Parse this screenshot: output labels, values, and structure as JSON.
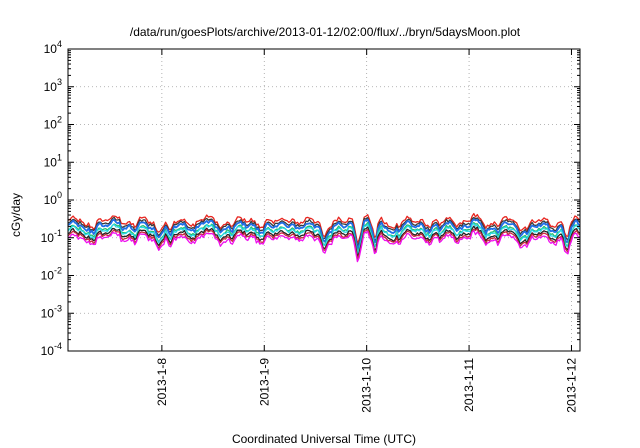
{
  "chart_data": {
    "type": "line",
    "title": "/data/run/goesPlots/archive/2013-01-12/02:00/flux/../bryn/5daysMoon.plot",
    "xlabel": "Coordinated Universal Time (UTC)",
    "ylabel": "cGy/day",
    "yscale": "log",
    "ylim": [
      0.0001,
      10000
    ],
    "xlim": [
      "2013-01-07 02:00",
      "2013-01-12 02:00"
    ],
    "grid": true,
    "x_ticks": [
      {
        "value": "2013-01-08 00:00",
        "label": "2013-1-8"
      },
      {
        "value": "2013-01-09 00:00",
        "label": "2013-1-9"
      },
      {
        "value": "2013-01-10 00:00",
        "label": "2013-1-10"
      },
      {
        "value": "2013-01-11 00:00",
        "label": "2013-1-11"
      },
      {
        "value": "2013-01-12 00:00",
        "label": "2013-1-12"
      }
    ],
    "y_ticks": [
      {
        "value": 0.0001,
        "base": "10",
        "exp": "-4"
      },
      {
        "value": 0.001,
        "base": "10",
        "exp": "-3"
      },
      {
        "value": 0.01,
        "base": "10",
        "exp": "-2"
      },
      {
        "value": 0.1,
        "base": "10",
        "exp": "-1"
      },
      {
        "value": 1,
        "base": "10",
        "exp": "0"
      },
      {
        "value": 10,
        "base": "10",
        "exp": "1"
      },
      {
        "value": 100,
        "base": "10",
        "exp": "2"
      },
      {
        "value": 1000,
        "base": "10",
        "exp": "3"
      },
      {
        "value": 10000,
        "base": "10",
        "exp": "4"
      }
    ],
    "series": [
      {
        "color": "#e8251f",
        "baseline": 0.27,
        "spread": 0.1
      },
      {
        "color": "#3a3a3a",
        "baseline": 0.23,
        "spread": 0.1
      },
      {
        "color": "#1f6fe8",
        "baseline": 0.2,
        "spread": 0.12
      },
      {
        "color": "#20c070",
        "baseline": 0.16,
        "spread": 0.1
      },
      {
        "color": "#2ad8e8",
        "baseline": 0.15,
        "spread": 0.1
      },
      {
        "color": "#222222",
        "baseline": 0.125,
        "spread": 0.08
      },
      {
        "color": "#c8283c",
        "baseline": 0.11,
        "spread": 0.08
      },
      {
        "color": "#ee10ee",
        "baseline": 0.095,
        "spread": 0.15
      }
    ],
    "dips": [
      {
        "x": "2013-01-07 06:00",
        "factor": 0.7
      },
      {
        "x": "2013-01-07 18:00",
        "factor": 0.8
      },
      {
        "x": "2013-01-07 23:00",
        "factor": 0.55
      },
      {
        "x": "2013-01-08 02:00",
        "factor": 0.5
      },
      {
        "x": "2013-01-08 14:00",
        "factor": 0.75
      },
      {
        "x": "2013-01-09 02:00",
        "factor": 0.8
      },
      {
        "x": "2013-01-09 14:00",
        "factor": 0.3
      },
      {
        "x": "2013-01-09 22:00",
        "factor": 0.25
      },
      {
        "x": "2013-01-10 02:00",
        "factor": 0.2
      },
      {
        "x": "2013-01-10 06:00",
        "factor": 0.7
      },
      {
        "x": "2013-01-10 17:00",
        "factor": 0.75
      },
      {
        "x": "2013-01-11 04:00",
        "factor": 0.7
      },
      {
        "x": "2013-01-11 12:00",
        "factor": 0.55
      },
      {
        "x": "2013-01-11 19:00",
        "factor": 0.7
      },
      {
        "x": "2013-01-11 23:00",
        "factor": 0.3
      }
    ],
    "peaks": [
      {
        "x": "2013-01-07 14:00",
        "factor": 1.4
      },
      {
        "x": "2013-01-08 10:00",
        "factor": 1.3
      },
      {
        "x": "2013-01-09 06:00",
        "factor": 1.3
      },
      {
        "x": "2013-01-10 00:00",
        "factor": 1.4
      },
      {
        "x": "2013-01-11 01:00",
        "factor": 1.3
      }
    ]
  }
}
